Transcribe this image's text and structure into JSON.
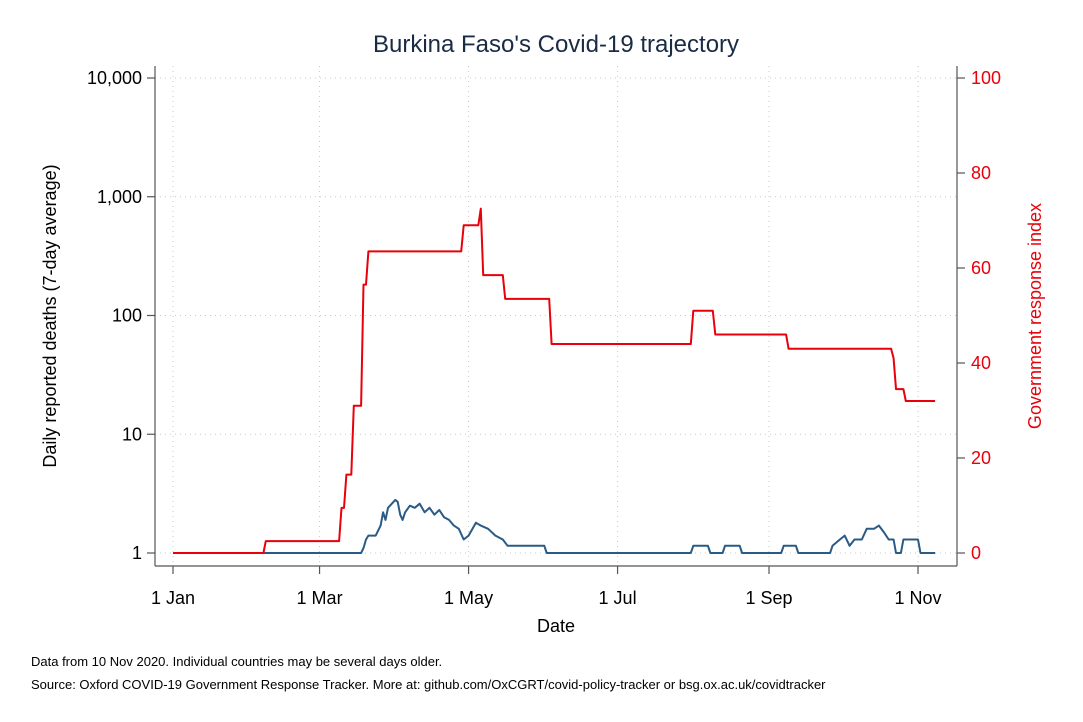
{
  "chart_data": {
    "type": "line",
    "title": "Burkina Faso's Covid-19 trajectory",
    "xlabel": "Date",
    "ylabel": "Daily reported deaths (7-day average)",
    "y2label": "Government response index",
    "x_ticks": [
      "1 Jan",
      "1 Mar",
      "1 May",
      "1 Jul",
      "1 Sep",
      "1 Nov"
    ],
    "y_ticks": [
      "1",
      "10",
      "100",
      "1,000",
      "10,000"
    ],
    "y2_ticks": [
      "0",
      "20",
      "40",
      "60",
      "80",
      "100"
    ],
    "y_scale": "log",
    "ylim": [
      1,
      10000
    ],
    "y2lim": [
      0,
      100
    ],
    "xlim": [
      "2020-01-01",
      "2020-11-10"
    ],
    "grid": true,
    "series": [
      {
        "name": "Daily reported deaths (7-day average)",
        "axis": "left",
        "color": "#2a5a86",
        "points": [
          [
            "2020-01-01",
            1
          ],
          [
            "2020-03-18",
            1
          ],
          [
            "2020-03-19",
            1.1
          ],
          [
            "2020-03-20",
            1.3
          ],
          [
            "2020-03-21",
            1.4
          ],
          [
            "2020-03-24",
            1.4
          ],
          [
            "2020-03-26",
            1.7
          ],
          [
            "2020-03-27",
            2.2
          ],
          [
            "2020-03-28",
            1.9
          ],
          [
            "2020-03-29",
            2.4
          ],
          [
            "2020-04-01",
            2.8
          ],
          [
            "2020-04-02",
            2.7
          ],
          [
            "2020-04-03",
            2.1
          ],
          [
            "2020-04-04",
            1.9
          ],
          [
            "2020-04-05",
            2.2
          ],
          [
            "2020-04-07",
            2.5
          ],
          [
            "2020-04-09",
            2.4
          ],
          [
            "2020-04-11",
            2.6
          ],
          [
            "2020-04-13",
            2.2
          ],
          [
            "2020-04-15",
            2.4
          ],
          [
            "2020-04-17",
            2.1
          ],
          [
            "2020-04-19",
            2.3
          ],
          [
            "2020-04-21",
            2.0
          ],
          [
            "2020-04-23",
            1.9
          ],
          [
            "2020-04-25",
            1.7
          ],
          [
            "2020-04-27",
            1.6
          ],
          [
            "2020-04-29",
            1.3
          ],
          [
            "2020-05-01",
            1.4
          ],
          [
            "2020-05-04",
            1.8
          ],
          [
            "2020-05-06",
            1.7
          ],
          [
            "2020-05-09",
            1.6
          ],
          [
            "2020-05-12",
            1.4
          ],
          [
            "2020-05-15",
            1.3
          ],
          [
            "2020-05-17",
            1.15
          ],
          [
            "2020-06-01",
            1.15
          ],
          [
            "2020-06-02",
            1
          ],
          [
            "2020-07-31",
            1
          ],
          [
            "2020-08-01",
            1.15
          ],
          [
            "2020-08-07",
            1.15
          ],
          [
            "2020-08-08",
            1
          ],
          [
            "2020-08-13",
            1
          ],
          [
            "2020-08-14",
            1.15
          ],
          [
            "2020-08-20",
            1.15
          ],
          [
            "2020-08-21",
            1
          ],
          [
            "2020-09-06",
            1
          ],
          [
            "2020-09-07",
            1.15
          ],
          [
            "2020-09-12",
            1.15
          ],
          [
            "2020-09-13",
            1
          ],
          [
            "2020-09-26",
            1
          ],
          [
            "2020-09-27",
            1.15
          ],
          [
            "2020-09-30",
            1.3
          ],
          [
            "2020-10-02",
            1.4
          ],
          [
            "2020-10-04",
            1.15
          ],
          [
            "2020-10-06",
            1.3
          ],
          [
            "2020-10-09",
            1.3
          ],
          [
            "2020-10-11",
            1.6
          ],
          [
            "2020-10-14",
            1.6
          ],
          [
            "2020-10-16",
            1.7
          ],
          [
            "2020-10-18",
            1.5
          ],
          [
            "2020-10-20",
            1.3
          ],
          [
            "2020-10-22",
            1.3
          ],
          [
            "2020-10-23",
            1
          ],
          [
            "2020-10-25",
            1
          ],
          [
            "2020-10-26",
            1.3
          ],
          [
            "2020-11-01",
            1.3
          ],
          [
            "2020-11-02",
            1
          ],
          [
            "2020-11-08",
            1
          ]
        ]
      },
      {
        "name": "Government response index",
        "axis": "right",
        "color": "#e8000b",
        "points": [
          [
            "2020-01-01",
            0
          ],
          [
            "2020-02-07",
            0
          ],
          [
            "2020-02-08",
            2.5
          ],
          [
            "2020-03-09",
            2.5
          ],
          [
            "2020-03-10",
            9.5
          ],
          [
            "2020-03-11",
            9.5
          ],
          [
            "2020-03-12",
            16.5
          ],
          [
            "2020-03-14",
            16.5
          ],
          [
            "2020-03-15",
            31
          ],
          [
            "2020-03-18",
            31
          ],
          [
            "2020-03-19",
            56.5
          ],
          [
            "2020-03-20",
            56.5
          ],
          [
            "2020-03-21",
            63.5
          ],
          [
            "2020-04-28",
            63.5
          ],
          [
            "2020-04-29",
            69
          ],
          [
            "2020-05-05",
            69
          ],
          [
            "2020-05-06",
            72.5
          ],
          [
            "2020-05-07",
            58.5
          ],
          [
            "2020-05-15",
            58.5
          ],
          [
            "2020-05-16",
            53.5
          ],
          [
            "2020-06-03",
            53.5
          ],
          [
            "2020-06-04",
            44
          ],
          [
            "2020-07-31",
            44
          ],
          [
            "2020-08-01",
            51
          ],
          [
            "2020-08-09",
            51
          ],
          [
            "2020-08-10",
            46
          ],
          [
            "2020-09-08",
            46
          ],
          [
            "2020-09-09",
            43
          ],
          [
            "2020-10-21",
            43
          ],
          [
            "2020-10-22",
            41
          ],
          [
            "2020-10-23",
            34.5
          ],
          [
            "2020-10-26",
            34.5
          ],
          [
            "2020-10-27",
            32
          ],
          [
            "2020-11-08",
            32
          ]
        ]
      }
    ],
    "notes": [
      "Data from 10 Nov 2020. Individual countries may be several days older.",
      "Source: Oxford COVID-19 Government Response Tracker. More at: github.com/OxCGRT/covid-policy-tracker or bsg.ox.ac.uk/covidtracker"
    ]
  }
}
